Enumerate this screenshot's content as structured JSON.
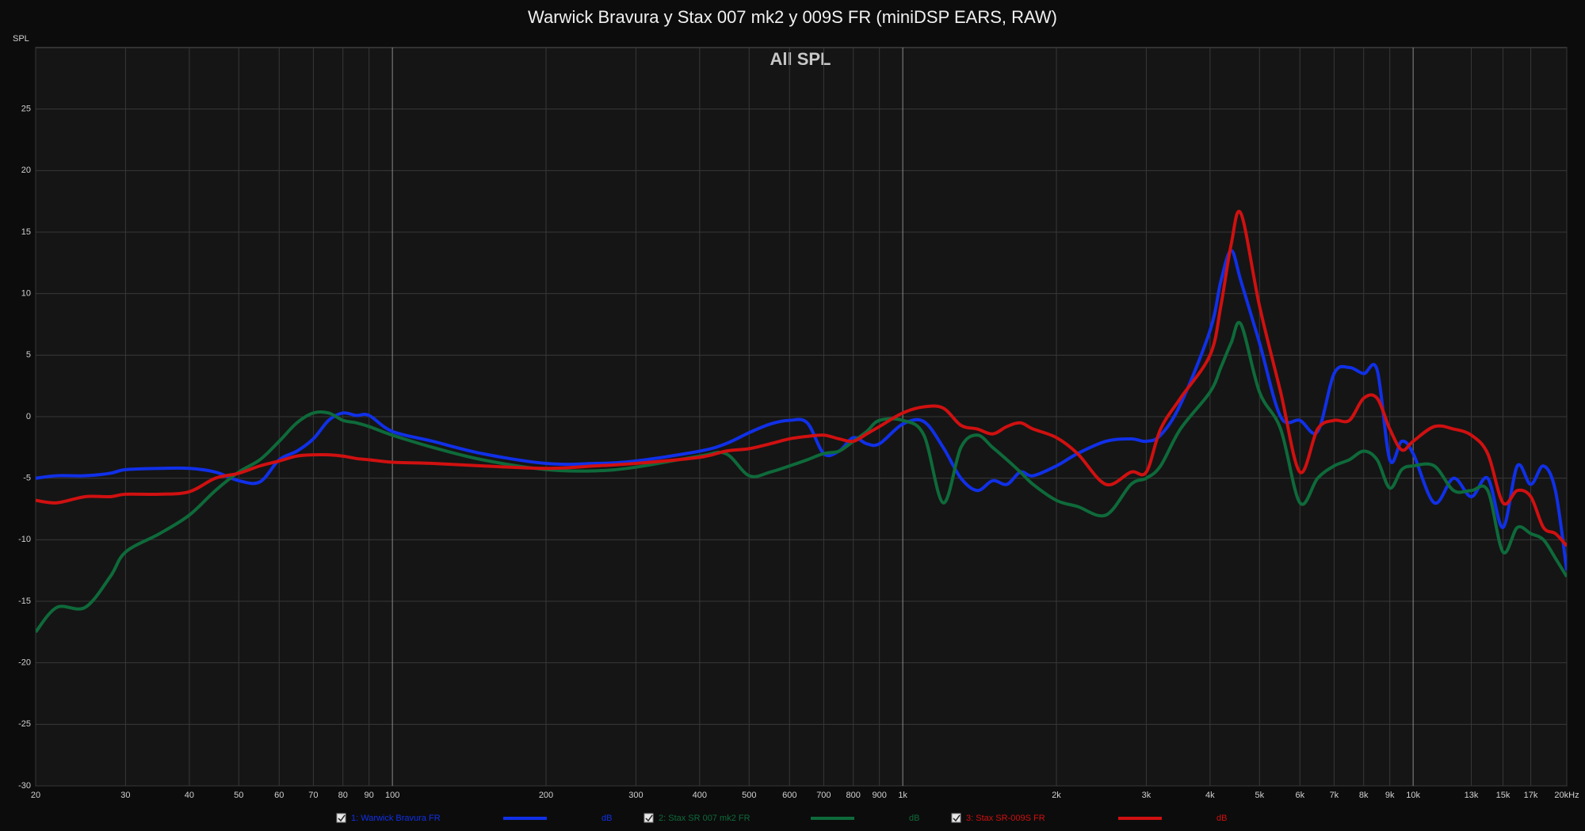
{
  "chart_data": {
    "type": "line",
    "title": "Warwick Bravura y Stax 007 mk2 y 009S FR (miniDSP EARS, RAW)",
    "annotation": "All SPL",
    "y_label": "SPL",
    "legend_unit": "dB",
    "x_scale": "log",
    "grid": true,
    "legend_position": "bottom",
    "xlim": [
      20,
      20000
    ],
    "ylim": [
      -30,
      30
    ],
    "yticks": [
      -30,
      -25,
      -20,
      -15,
      -10,
      -5,
      0,
      5,
      10,
      15,
      20,
      25
    ],
    "xticks": [
      20,
      30,
      40,
      50,
      60,
      70,
      80,
      90,
      100,
      200,
      300,
      400,
      500,
      600,
      700,
      800,
      900,
      {
        "value": 1000,
        "label": "1k"
      },
      {
        "value": 2000,
        "label": "2k"
      },
      {
        "value": 3000,
        "label": "3k"
      },
      {
        "value": 4000,
        "label": "4k"
      },
      {
        "value": 5000,
        "label": "5k"
      },
      {
        "value": 6000,
        "label": "6k"
      },
      {
        "value": 7000,
        "label": "7k"
      },
      {
        "value": 8000,
        "label": "8k"
      },
      {
        "value": 9000,
        "label": "9k"
      },
      {
        "value": 10000,
        "label": "10k"
      },
      {
        "value": 13000,
        "label": "13k"
      },
      {
        "value": 15000,
        "label": "15k"
      },
      {
        "value": 17000,
        "label": "17k"
      },
      {
        "value": 20000,
        "label": "20kHz"
      }
    ],
    "x": [
      20,
      22,
      25,
      28,
      30,
      35,
      40,
      45,
      50,
      55,
      60,
      65,
      70,
      75,
      80,
      85,
      90,
      100,
      120,
      150,
      200,
      250,
      300,
      400,
      450,
      500,
      550,
      600,
      650,
      700,
      750,
      800,
      850,
      900,
      1000,
      1100,
      1200,
      1300,
      1400,
      1500,
      1600,
      1700,
      1800,
      2000,
      2200,
      2500,
      2800,
      3000,
      3200,
      3500,
      4000,
      4200,
      4400,
      4600,
      5000,
      5500,
      6000,
      6500,
      7000,
      7500,
      8000,
      8500,
      9000,
      9500,
      10000,
      11000,
      12000,
      13000,
      14000,
      15000,
      16000,
      17000,
      18000,
      19000,
      20000
    ],
    "series": [
      {
        "name": "1: Warwick Bravura FR",
        "color": "#1030e8",
        "values": [
          -5,
          -4.8,
          -4.8,
          -4.6,
          -4.3,
          -4.2,
          -4.2,
          -4.5,
          -5.2,
          -5.3,
          -3.5,
          -2.8,
          -1.8,
          -0.3,
          0.3,
          0.1,
          0.1,
          -1.2,
          -2,
          -3,
          -3.8,
          -3.8,
          -3.6,
          -2.8,
          -2.2,
          -1.3,
          -0.6,
          -0.3,
          -0.5,
          -3,
          -2.8,
          -1.7,
          -2.2,
          -2.2,
          -0.6,
          -0.4,
          -2.5,
          -5,
          -6,
          -5.2,
          -5.5,
          -4.5,
          -4.8,
          -4,
          -3,
          -2,
          -1.8,
          -2,
          -1.5,
          1,
          7,
          11,
          13.5,
          11,
          6,
          0,
          -0.3,
          -1.2,
          3.5,
          4,
          3.5,
          3.8,
          -3.5,
          -2,
          -3,
          -7,
          -5,
          -6.5,
          -5,
          -9,
          -4,
          -5.5,
          -4,
          -6,
          -12.5
        ]
      },
      {
        "name": "2: Stax SR 007 mk2 FR",
        "color": "#0e6a3a",
        "values": [
          -17.5,
          -15.5,
          -15.5,
          -13,
          -11,
          -9.5,
          -8,
          -6,
          -4.5,
          -3.5,
          -2,
          -0.5,
          0.3,
          0.3,
          -0.3,
          -0.5,
          -0.8,
          -1.5,
          -2.5,
          -3.5,
          -4.3,
          -4.4,
          -4.1,
          -3.2,
          -3,
          -4.8,
          -4.5,
          -4,
          -3.5,
          -3,
          -2.8,
          -2,
          -1.2,
          -0.3,
          -0.3,
          -1.5,
          -7,
          -2.5,
          -1.5,
          -2.5,
          -3.5,
          -4.5,
          -5.5,
          -6.8,
          -7.3,
          -8,
          -5.5,
          -5,
          -4,
          -1,
          2,
          4,
          6,
          7.5,
          2,
          -1,
          -7,
          -5,
          -4,
          -3.5,
          -2.8,
          -3.5,
          -5.8,
          -4.3,
          -4,
          -4,
          -6,
          -6,
          -6,
          -11,
          -9,
          -9.5,
          -10,
          -11.5,
          -13
        ]
      },
      {
        "name": "3: Stax SR-009S FR",
        "color": "#d01010",
        "values": [
          -6.8,
          -7,
          -6.5,
          -6.5,
          -6.3,
          -6.3,
          -6.1,
          -5,
          -4.6,
          -4,
          -3.6,
          -3.2,
          -3.1,
          -3.1,
          -3.2,
          -3.4,
          -3.5,
          -3.7,
          -3.8,
          -4,
          -4.2,
          -4,
          -3.8,
          -3.3,
          -2.8,
          -2.6,
          -2.2,
          -1.8,
          -1.6,
          -1.5,
          -1.8,
          -2,
          -1.4,
          -0.8,
          0.3,
          0.8,
          0.7,
          -0.7,
          -1,
          -1.4,
          -0.8,
          -0.5,
          -1,
          -1.7,
          -3,
          -5.5,
          -4.5,
          -4.5,
          -1,
          1.5,
          5,
          9,
          14,
          16.5,
          9,
          2,
          -4.5,
          -1,
          -0.3,
          -0.3,
          1.5,
          1.5,
          -1,
          -2.7,
          -2,
          -0.8,
          -1,
          -1.5,
          -3,
          -7,
          -6,
          -6.5,
          -9,
          -9.5,
          -10.5
        ]
      }
    ]
  }
}
